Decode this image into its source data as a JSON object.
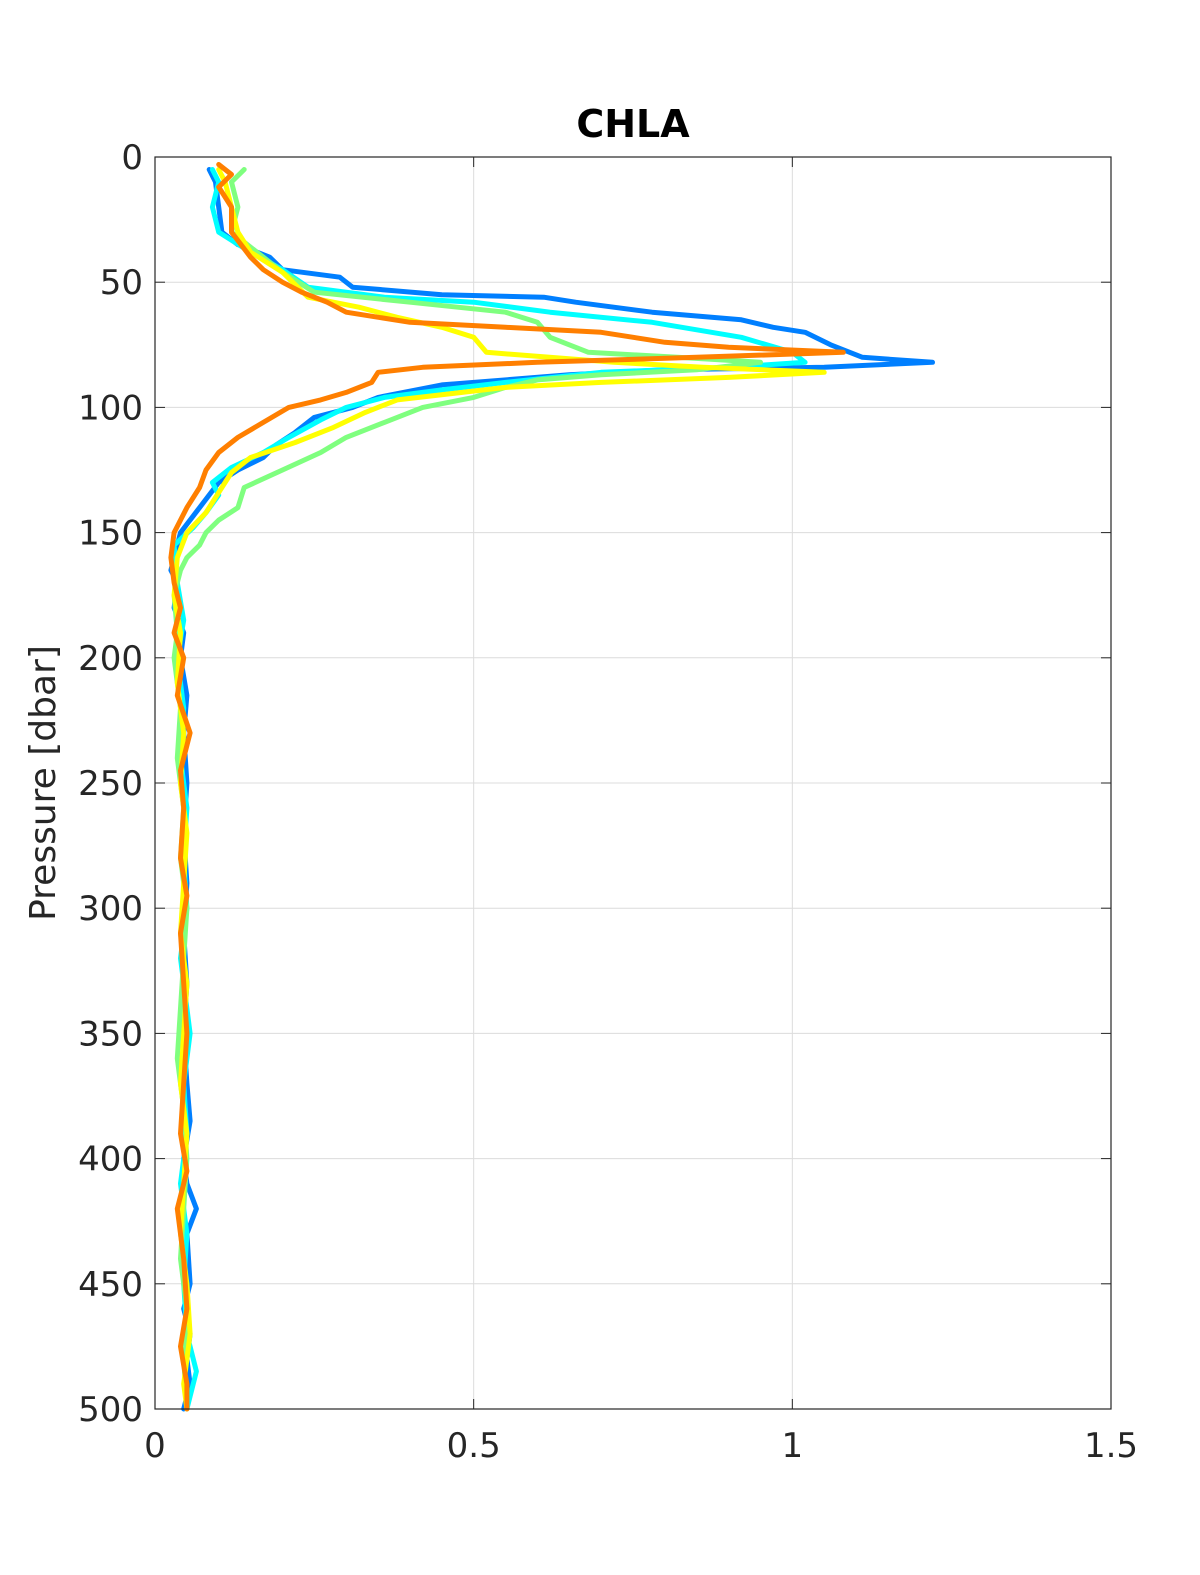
{
  "chart_data": {
    "type": "line",
    "title": "CHLA",
    "xlabel": "",
    "ylabel": "Pressure [dbar]",
    "xlim": [
      0,
      1.5
    ],
    "ylim": [
      0,
      500
    ],
    "y_reversed": true,
    "grid": true,
    "legend": "none",
    "xticks": [
      "0",
      "0.5",
      "1",
      "1.5"
    ],
    "yticks": [
      "0",
      "50",
      "100",
      "150",
      "200",
      "250",
      "300",
      "350",
      "400",
      "450",
      "500"
    ],
    "series": [
      {
        "color": "#007fff",
        "points": [
          [
            0.085,
            5
          ],
          [
            0.095,
            10
          ],
          [
            0.1,
            20
          ],
          [
            0.105,
            30
          ],
          [
            0.13,
            35
          ],
          [
            0.18,
            40
          ],
          [
            0.2,
            45
          ],
          [
            0.29,
            48
          ],
          [
            0.31,
            52
          ],
          [
            0.45,
            55
          ],
          [
            0.61,
            56
          ],
          [
            0.66,
            58
          ],
          [
            0.78,
            62
          ],
          [
            0.92,
            65
          ],
          [
            0.97,
            68
          ],
          [
            1.02,
            70
          ],
          [
            1.06,
            75
          ],
          [
            1.11,
            80
          ],
          [
            1.22,
            82
          ],
          [
            1.05,
            84
          ],
          [
            0.8,
            85
          ],
          [
            0.65,
            87
          ],
          [
            0.45,
            91
          ],
          [
            0.35,
            96
          ],
          [
            0.31,
            100
          ],
          [
            0.25,
            104
          ],
          [
            0.22,
            110
          ],
          [
            0.19,
            115
          ],
          [
            0.17,
            120
          ],
          [
            0.13,
            125
          ],
          [
            0.1,
            130
          ],
          [
            0.07,
            140
          ],
          [
            0.04,
            150
          ],
          [
            0.03,
            160
          ],
          [
            0.025,
            165
          ],
          [
            0.035,
            170
          ],
          [
            0.03,
            180
          ],
          [
            0.045,
            190
          ],
          [
            0.04,
            200
          ],
          [
            0.05,
            215
          ],
          [
            0.045,
            230
          ],
          [
            0.05,
            250
          ],
          [
            0.045,
            270
          ],
          [
            0.05,
            290
          ],
          [
            0.045,
            310
          ],
          [
            0.05,
            330
          ],
          [
            0.045,
            350
          ],
          [
            0.05,
            370
          ],
          [
            0.055,
            385
          ],
          [
            0.045,
            400
          ],
          [
            0.05,
            410
          ],
          [
            0.065,
            420
          ],
          [
            0.05,
            430
          ],
          [
            0.055,
            450
          ],
          [
            0.045,
            460
          ],
          [
            0.055,
            470
          ],
          [
            0.05,
            480
          ],
          [
            0.055,
            490
          ],
          [
            0.045,
            500
          ]
        ]
      },
      {
        "color": "#00ffff",
        "points": [
          [
            0.09,
            5
          ],
          [
            0.1,
            10
          ],
          [
            0.09,
            20
          ],
          [
            0.1,
            30
          ],
          [
            0.15,
            38
          ],
          [
            0.2,
            45
          ],
          [
            0.24,
            52
          ],
          [
            0.36,
            56
          ],
          [
            0.5,
            58
          ],
          [
            0.62,
            62
          ],
          [
            0.78,
            66
          ],
          [
            0.92,
            72
          ],
          [
            1.0,
            78
          ],
          [
            1.02,
            82
          ],
          [
            0.9,
            84
          ],
          [
            0.7,
            86
          ],
          [
            0.55,
            90
          ],
          [
            0.45,
            93
          ],
          [
            0.36,
            96
          ],
          [
            0.3,
            100
          ],
          [
            0.26,
            105
          ],
          [
            0.21,
            112
          ],
          [
            0.17,
            118
          ],
          [
            0.12,
            124
          ],
          [
            0.09,
            130
          ],
          [
            0.1,
            135
          ],
          [
            0.08,
            142
          ],
          [
            0.06,
            148
          ],
          [
            0.03,
            155
          ],
          [
            0.035,
            170
          ],
          [
            0.045,
            185
          ],
          [
            0.035,
            200
          ],
          [
            0.045,
            220
          ],
          [
            0.04,
            240
          ],
          [
            0.05,
            260
          ],
          [
            0.045,
            280
          ],
          [
            0.05,
            300
          ],
          [
            0.04,
            320
          ],
          [
            0.05,
            340
          ],
          [
            0.055,
            350
          ],
          [
            0.045,
            370
          ],
          [
            0.05,
            390
          ],
          [
            0.04,
            410
          ],
          [
            0.05,
            430
          ],
          [
            0.045,
            450
          ],
          [
            0.05,
            470
          ],
          [
            0.065,
            485
          ],
          [
            0.05,
            500
          ]
        ]
      },
      {
        "color": "#7fff7f",
        "points": [
          [
            0.14,
            5
          ],
          [
            0.12,
            10
          ],
          [
            0.13,
            20
          ],
          [
            0.12,
            30
          ],
          [
            0.16,
            38
          ],
          [
            0.2,
            46
          ],
          [
            0.25,
            54
          ],
          [
            0.4,
            58
          ],
          [
            0.55,
            62
          ],
          [
            0.6,
            66
          ],
          [
            0.62,
            72
          ],
          [
            0.68,
            78
          ],
          [
            0.82,
            80
          ],
          [
            0.95,
            82
          ],
          [
            0.85,
            85
          ],
          [
            0.7,
            87
          ],
          [
            0.6,
            89
          ],
          [
            0.55,
            92
          ],
          [
            0.5,
            96
          ],
          [
            0.42,
            100
          ],
          [
            0.36,
            106
          ],
          [
            0.3,
            112
          ],
          [
            0.26,
            118
          ],
          [
            0.2,
            125
          ],
          [
            0.14,
            132
          ],
          [
            0.13,
            140
          ],
          [
            0.1,
            145
          ],
          [
            0.08,
            150
          ],
          [
            0.07,
            155
          ],
          [
            0.05,
            160
          ],
          [
            0.04,
            165
          ],
          [
            0.03,
            175
          ],
          [
            0.035,
            190
          ],
          [
            0.03,
            200
          ],
          [
            0.04,
            220
          ],
          [
            0.035,
            240
          ],
          [
            0.045,
            260
          ],
          [
            0.04,
            280
          ],
          [
            0.05,
            300
          ],
          [
            0.045,
            320
          ],
          [
            0.04,
            340
          ],
          [
            0.035,
            360
          ],
          [
            0.045,
            380
          ],
          [
            0.05,
            400
          ],
          [
            0.045,
            420
          ],
          [
            0.04,
            440
          ],
          [
            0.05,
            460
          ],
          [
            0.045,
            480
          ],
          [
            0.05,
            500
          ]
        ]
      },
      {
        "color": "#ffff00",
        "points": [
          [
            0.1,
            5
          ],
          [
            0.11,
            10
          ],
          [
            0.12,
            20
          ],
          [
            0.13,
            30
          ],
          [
            0.15,
            38
          ],
          [
            0.2,
            46
          ],
          [
            0.24,
            56
          ],
          [
            0.32,
            60
          ],
          [
            0.38,
            64
          ],
          [
            0.45,
            68
          ],
          [
            0.5,
            72
          ],
          [
            0.52,
            78
          ],
          [
            0.72,
            82
          ],
          [
            0.86,
            84
          ],
          [
            1.05,
            86
          ],
          [
            0.9,
            88
          ],
          [
            0.7,
            90
          ],
          [
            0.55,
            92
          ],
          [
            0.38,
            97
          ],
          [
            0.33,
            102
          ],
          [
            0.28,
            108
          ],
          [
            0.22,
            114
          ],
          [
            0.15,
            120
          ],
          [
            0.12,
            126
          ],
          [
            0.1,
            134
          ],
          [
            0.08,
            142
          ],
          [
            0.05,
            150
          ],
          [
            0.035,
            160
          ],
          [
            0.03,
            175
          ],
          [
            0.04,
            190
          ],
          [
            0.035,
            210
          ],
          [
            0.045,
            230
          ],
          [
            0.04,
            250
          ],
          [
            0.05,
            270
          ],
          [
            0.045,
            290
          ],
          [
            0.04,
            310
          ],
          [
            0.05,
            330
          ],
          [
            0.045,
            350
          ],
          [
            0.04,
            370
          ],
          [
            0.05,
            390
          ],
          [
            0.045,
            410
          ],
          [
            0.04,
            430
          ],
          [
            0.05,
            450
          ],
          [
            0.055,
            470
          ],
          [
            0.045,
            490
          ],
          [
            0.05,
            500
          ]
        ]
      },
      {
        "color": "#ff7f00",
        "points": [
          [
            0.1,
            3
          ],
          [
            0.12,
            7
          ],
          [
            0.1,
            12
          ],
          [
            0.12,
            20
          ],
          [
            0.12,
            30
          ],
          [
            0.15,
            40
          ],
          [
            0.17,
            45
          ],
          [
            0.2,
            50
          ],
          [
            0.23,
            54
          ],
          [
            0.27,
            58
          ],
          [
            0.3,
            62
          ],
          [
            0.4,
            66
          ],
          [
            0.55,
            68
          ],
          [
            0.7,
            70
          ],
          [
            0.8,
            74
          ],
          [
            0.9,
            76
          ],
          [
            1.08,
            78
          ],
          [
            0.85,
            80
          ],
          [
            0.6,
            82
          ],
          [
            0.42,
            84
          ],
          [
            0.35,
            86
          ],
          [
            0.34,
            90
          ],
          [
            0.3,
            94
          ],
          [
            0.26,
            97
          ],
          [
            0.21,
            100
          ],
          [
            0.17,
            106
          ],
          [
            0.13,
            112
          ],
          [
            0.1,
            118
          ],
          [
            0.08,
            125
          ],
          [
            0.07,
            132
          ],
          [
            0.05,
            140
          ],
          [
            0.03,
            150
          ],
          [
            0.025,
            160
          ],
          [
            0.03,
            170
          ],
          [
            0.04,
            180
          ],
          [
            0.03,
            190
          ],
          [
            0.045,
            200
          ],
          [
            0.035,
            215
          ],
          [
            0.055,
            230
          ],
          [
            0.04,
            245
          ],
          [
            0.045,
            260
          ],
          [
            0.04,
            280
          ],
          [
            0.05,
            295
          ],
          [
            0.04,
            310
          ],
          [
            0.045,
            330
          ],
          [
            0.05,
            350
          ],
          [
            0.045,
            370
          ],
          [
            0.04,
            390
          ],
          [
            0.05,
            405
          ],
          [
            0.035,
            420
          ],
          [
            0.045,
            440
          ],
          [
            0.05,
            460
          ],
          [
            0.04,
            475
          ],
          [
            0.05,
            490
          ],
          [
            0.05,
            500
          ]
        ]
      }
    ]
  }
}
